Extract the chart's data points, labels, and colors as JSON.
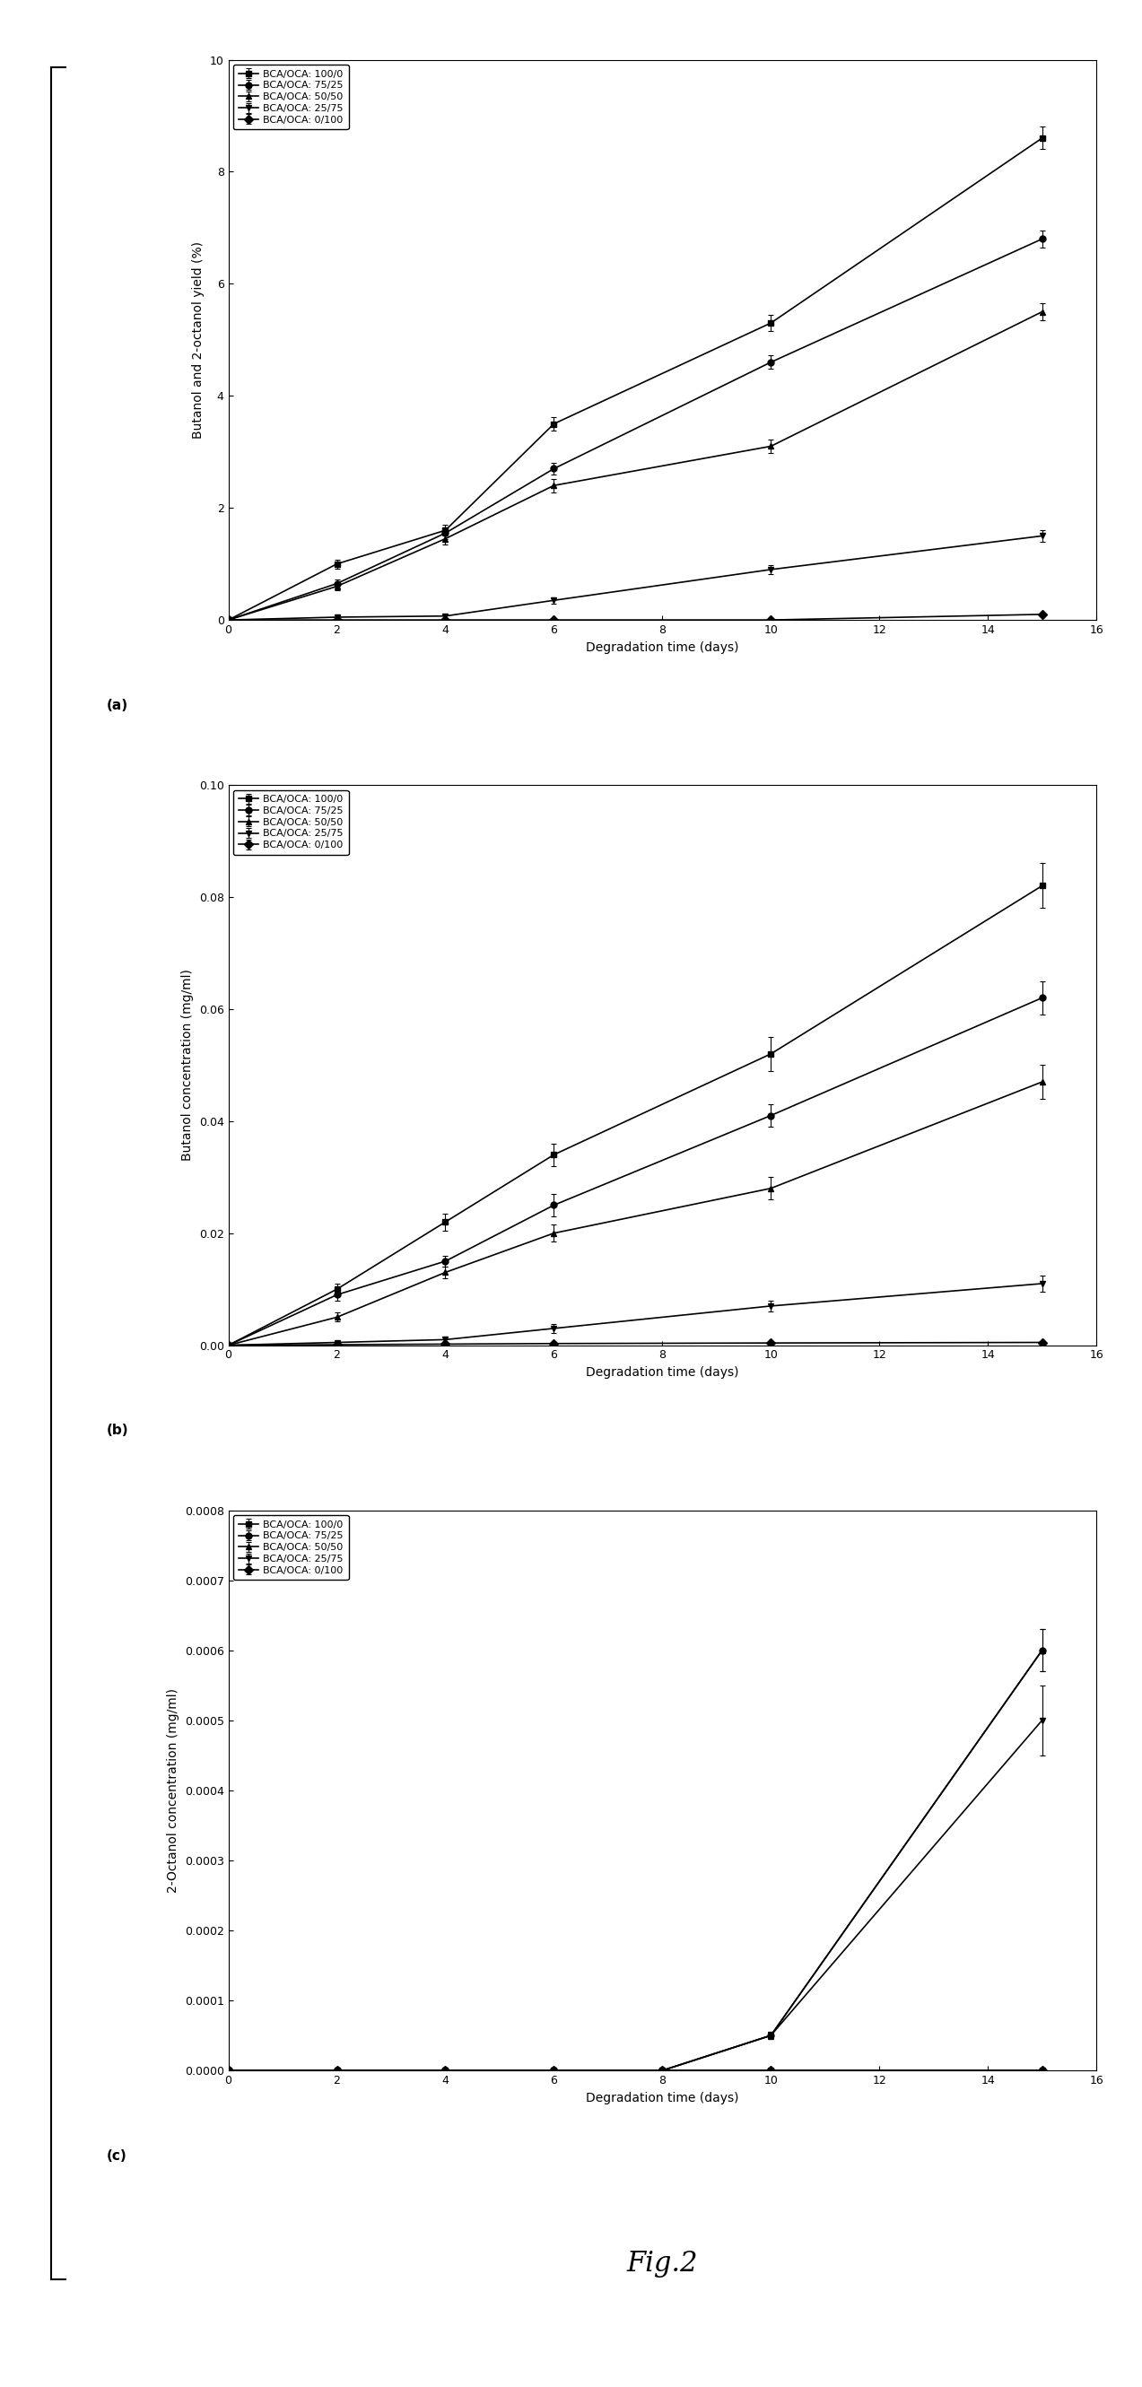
{
  "legend_labels": [
    "BCA/OCA: 100/0",
    "BCA/OCA: 75/25",
    "BCA/OCA: 50/50",
    "BCA/OCA: 25/75",
    "BCA/OCA: 0/100"
  ],
  "markers": [
    "s",
    "o",
    "^",
    "v",
    "D"
  ],
  "subplot_a": {
    "xlabel": "Degradation time (days)",
    "ylabel": "Butanol and 2-octanol yield (%)",
    "label": "(a)",
    "xlim": [
      0,
      16
    ],
    "ylim": [
      0,
      10
    ],
    "xticks": [
      0,
      2,
      4,
      6,
      8,
      10,
      12,
      14,
      16
    ],
    "yticks": [
      0,
      2,
      4,
      6,
      8,
      10
    ],
    "x": [
      0,
      2,
      4,
      6,
      10,
      15
    ],
    "series": [
      [
        0,
        1.0,
        1.6,
        3.5,
        5.3,
        8.6
      ],
      [
        0,
        0.65,
        1.55,
        2.7,
        4.6,
        6.8
      ],
      [
        0,
        0.6,
        1.45,
        2.4,
        3.1,
        5.5
      ],
      [
        0,
        0.05,
        0.07,
        0.35,
        0.9,
        1.5
      ],
      [
        0,
        0.0,
        0.0,
        0.0,
        0.0,
        0.1
      ]
    ],
    "errors": [
      [
        0,
        0.08,
        0.1,
        0.12,
        0.15,
        0.2
      ],
      [
        0,
        0.07,
        0.1,
        0.1,
        0.12,
        0.15
      ],
      [
        0,
        0.07,
        0.1,
        0.12,
        0.12,
        0.15
      ],
      [
        0,
        0.03,
        0.03,
        0.06,
        0.08,
        0.1
      ],
      [
        0,
        0.02,
        0.02,
        0.02,
        0.02,
        0.03
      ]
    ]
  },
  "subplot_b": {
    "xlabel": "Degradation time (days)",
    "ylabel": "Butanol concentration (mg/ml)",
    "label": "(b)",
    "xlim": [
      0,
      16
    ],
    "ylim": [
      0,
      0.1
    ],
    "xticks": [
      0,
      2,
      4,
      6,
      8,
      10,
      12,
      14,
      16
    ],
    "yticks": [
      0.0,
      0.02,
      0.04,
      0.06,
      0.08,
      0.1
    ],
    "x": [
      0,
      2,
      4,
      6,
      10,
      15
    ],
    "series": [
      [
        0,
        0.01,
        0.022,
        0.034,
        0.052,
        0.082
      ],
      [
        0,
        0.009,
        0.015,
        0.025,
        0.041,
        0.062
      ],
      [
        0,
        0.005,
        0.013,
        0.02,
        0.028,
        0.047
      ],
      [
        0,
        0.0005,
        0.001,
        0.003,
        0.007,
        0.011
      ],
      [
        0,
        0.0001,
        0.0002,
        0.0003,
        0.0004,
        0.0005
      ]
    ],
    "errors": [
      [
        0,
        0.001,
        0.0015,
        0.002,
        0.003,
        0.004
      ],
      [
        0,
        0.001,
        0.001,
        0.002,
        0.002,
        0.003
      ],
      [
        0,
        0.0008,
        0.001,
        0.0015,
        0.002,
        0.003
      ],
      [
        0,
        0.0003,
        0.0005,
        0.0008,
        0.001,
        0.0015
      ],
      [
        0,
        0.0001,
        0.0001,
        0.0001,
        0.0001,
        0.0001
      ]
    ]
  },
  "subplot_c": {
    "xlabel": "Degradation time (days)",
    "ylabel": "2-Octanol concentration (mg/ml)",
    "label": "(c)",
    "xlim": [
      0,
      16
    ],
    "ylim": [
      0.0,
      0.0008
    ],
    "xticks": [
      0,
      2,
      4,
      6,
      8,
      10,
      12,
      14,
      16
    ],
    "yticks": [
      0.0,
      0.0001,
      0.0002,
      0.0003,
      0.0004,
      0.0005,
      0.0006,
      0.0007,
      0.0008
    ],
    "x": [
      0,
      2,
      4,
      6,
      8,
      10,
      15
    ],
    "series": [
      [
        0,
        0,
        0,
        0,
        0,
        0,
        0
      ],
      [
        0,
        0,
        0,
        0,
        0,
        5e-05,
        0.0006
      ],
      [
        0,
        0,
        0,
        0,
        0,
        5e-05,
        0.0006
      ],
      [
        0,
        0,
        0,
        0,
        0,
        5e-05,
        0.0005
      ],
      [
        0,
        0,
        0,
        0,
        0,
        0,
        0
      ]
    ],
    "errors": [
      [
        0,
        0,
        0,
        0,
        0,
        0,
        0
      ],
      [
        0,
        0,
        0,
        0,
        0,
        5e-06,
        3e-05
      ],
      [
        0,
        0,
        0,
        0,
        0,
        5e-06,
        3e-05
      ],
      [
        0,
        0,
        0,
        0,
        0,
        5e-06,
        5e-05
      ],
      [
        0,
        0,
        0,
        0,
        0,
        0,
        0
      ]
    ]
  },
  "fig_label": "Fig.2",
  "linewidth": 1.2,
  "markersize": 5,
  "fontsize_label": 10,
  "fontsize_tick": 9,
  "fontsize_legend": 8,
  "fontsize_figlabel": 22
}
